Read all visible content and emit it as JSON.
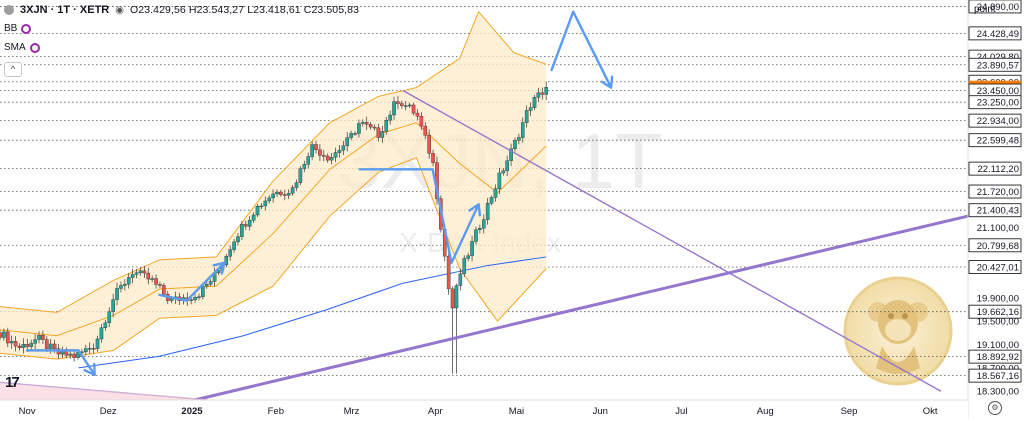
{
  "header": {
    "symbol": "3XJN · 1T · XETR",
    "ohlc": "O23.429,56  H23.543,27  L23.418,61  C23.505,83",
    "indicators": [
      "BB",
      "SMA"
    ],
    "collapse_glyph": "^"
  },
  "watermark": {
    "big": "3XJN, 1T",
    "sub": "X-DAX Index"
  },
  "axis": {
    "unit": "point",
    "price_labels": [
      {
        "v": 24890.0,
        "t": "24.890,00",
        "boxed": true
      },
      {
        "v": 24428.49,
        "t": "24.428,49",
        "boxed": true
      },
      {
        "v": 24029.8,
        "t": "24.029,80",
        "boxed": true
      },
      {
        "v": 23890.57,
        "t": "23.890,57",
        "boxed": true
      },
      {
        "v": 23600.0,
        "t": "23.600,00",
        "boxed": true
      },
      {
        "v": 23505.83,
        "t": "23.505,83",
        "boxed": true,
        "current": true
      },
      {
        "v": 23450.0,
        "t": "23.450,00",
        "boxed": true
      },
      {
        "v": 23250.0,
        "t": "23.250,00",
        "boxed": true
      },
      {
        "v": 22934.0,
        "t": "22.934,00",
        "boxed": true
      },
      {
        "v": 22599.48,
        "t": "22.599,48",
        "boxed": true
      },
      {
        "v": 22112.2,
        "t": "22.112,20",
        "boxed": true
      },
      {
        "v": 21720.0,
        "t": "21.720,00",
        "boxed": true
      },
      {
        "v": 21400.43,
        "t": "21.400,43",
        "boxed": true
      },
      {
        "v": 21100.0,
        "t": "21.100,00",
        "boxed": false
      },
      {
        "v": 20799.68,
        "t": "20.799,68",
        "boxed": true
      },
      {
        "v": 20427.01,
        "t": "20.427,01",
        "boxed": true
      },
      {
        "v": 19900.0,
        "t": "19.900,00",
        "boxed": false
      },
      {
        "v": 19662.16,
        "t": "19.662,16",
        "boxed": true
      },
      {
        "v": 19500.0,
        "t": "19.500,00",
        "boxed": false
      },
      {
        "v": 19100.0,
        "t": "19.100,00",
        "boxed": false
      },
      {
        "v": 18892.92,
        "t": "18.892,92",
        "boxed": true
      },
      {
        "v": 18700.0,
        "t": "18.700,00",
        "boxed": false
      },
      {
        "v": 18567.16,
        "t": "18.567,16",
        "boxed": true
      },
      {
        "v": 18300.0,
        "t": "18.300,00",
        "boxed": false
      }
    ],
    "months": [
      "Nov",
      "Dez",
      "2025",
      "Feb",
      "Mrz",
      "Apr",
      "Mai",
      "Jun",
      "Jul",
      "Aug",
      "Sep",
      "Okt"
    ]
  },
  "chart_data": {
    "type": "candlestick",
    "ylim": [
      18150,
      25000
    ],
    "x_start": "2024-10-22",
    "x_end": "2025-10-15",
    "last_candle": "2025-05-12",
    "horizontal_levels": [
      24890,
      24428.49,
      24029.8,
      23890.57,
      23600,
      23450,
      23250,
      22934,
      22599.48,
      22112.2,
      21720,
      21400.43,
      20799.68,
      20427.01,
      19662.16,
      18892.92,
      18567.16
    ],
    "closes": [
      {
        "d": "2024-10-22",
        "c": 19300
      },
      {
        "d": "2024-10-29",
        "c": 19050
      },
      {
        "d": "2024-11-05",
        "c": 19200
      },
      {
        "d": "2024-11-12",
        "c": 18950
      },
      {
        "d": "2024-11-19",
        "c": 18900
      },
      {
        "d": "2024-11-26",
        "c": 19100
      },
      {
        "d": "2024-12-03",
        "c": 19900
      },
      {
        "d": "2024-12-10",
        "c": 20350
      },
      {
        "d": "2024-12-17",
        "c": 20200
      },
      {
        "d": "2024-12-24",
        "c": 19850
      },
      {
        "d": "2025-01-03",
        "c": 19950
      },
      {
        "d": "2025-01-10",
        "c": 20300
      },
      {
        "d": "2025-01-17",
        "c": 20950
      },
      {
        "d": "2025-01-24",
        "c": 21400
      },
      {
        "d": "2025-01-31",
        "c": 21700
      },
      {
        "d": "2025-02-07",
        "c": 21750
      },
      {
        "d": "2025-02-14",
        "c": 22500
      },
      {
        "d": "2025-02-21",
        "c": 22300
      },
      {
        "d": "2025-02-28",
        "c": 22600
      },
      {
        "d": "2025-03-04",
        "c": 22900
      },
      {
        "d": "2025-03-11",
        "c": 22700
      },
      {
        "d": "2025-03-18",
        "c": 23300
      },
      {
        "d": "2025-03-25",
        "c": 23050
      },
      {
        "d": "2025-03-31",
        "c": 22250
      },
      {
        "d": "2025-04-04",
        "c": 20800
      },
      {
        "d": "2025-04-07",
        "c": 19650
      },
      {
        "d": "2025-04-10",
        "c": 20300
      },
      {
        "d": "2025-04-17",
        "c": 21100
      },
      {
        "d": "2025-04-24",
        "c": 21900
      },
      {
        "d": "2025-04-30",
        "c": 22500
      },
      {
        "d": "2025-05-06",
        "c": 23200
      },
      {
        "d": "2025-05-12",
        "c": 23505.83
      }
    ],
    "bollinger": {
      "upper": [
        {
          "d": "2024-10-22",
          "v": 19750
        },
        {
          "d": "2024-11-12",
          "v": 19650
        },
        {
          "d": "2024-12-03",
          "v": 20200
        },
        {
          "d": "2024-12-20",
          "v": 20550
        },
        {
          "d": "2025-01-10",
          "v": 20600
        },
        {
          "d": "2025-01-31",
          "v": 21900
        },
        {
          "d": "2025-02-21",
          "v": 22900
        },
        {
          "d": "2025-03-11",
          "v": 23350
        },
        {
          "d": "2025-03-25",
          "v": 23500
        },
        {
          "d": "2025-04-10",
          "v": 24000
        },
        {
          "d": "2025-04-17",
          "v": 24800
        },
        {
          "d": "2025-04-30",
          "v": 24100
        },
        {
          "d": "2025-05-12",
          "v": 23900
        }
      ],
      "basis": [
        {
          "d": "2024-10-22",
          "v": 19350
        },
        {
          "d": "2024-11-12",
          "v": 19250
        },
        {
          "d": "2024-12-03",
          "v": 19600
        },
        {
          "d": "2024-12-20",
          "v": 20050
        },
        {
          "d": "2025-01-10",
          "v": 20100
        },
        {
          "d": "2025-01-31",
          "v": 21000
        },
        {
          "d": "2025-02-21",
          "v": 22100
        },
        {
          "d": "2025-03-11",
          "v": 22700
        },
        {
          "d": "2025-03-25",
          "v": 22900
        },
        {
          "d": "2025-04-10",
          "v": 22200
        },
        {
          "d": "2025-04-24",
          "v": 21700
        },
        {
          "d": "2025-05-12",
          "v": 22500
        }
      ],
      "lower": [
        {
          "d": "2024-10-22",
          "v": 18950
        },
        {
          "d": "2024-11-12",
          "v": 18850
        },
        {
          "d": "2024-12-03",
          "v": 19000
        },
        {
          "d": "2024-12-20",
          "v": 19550
        },
        {
          "d": "2025-01-10",
          "v": 19600
        },
        {
          "d": "2025-01-31",
          "v": 20100
        },
        {
          "d": "2025-02-21",
          "v": 21300
        },
        {
          "d": "2025-03-11",
          "v": 22050
        },
        {
          "d": "2025-03-25",
          "v": 22300
        },
        {
          "d": "2025-04-10",
          "v": 20400
        },
        {
          "d": "2025-04-24",
          "v": 19500
        },
        {
          "d": "2025-05-12",
          "v": 20400
        }
      ]
    },
    "sma": [
      {
        "d": "2024-11-20",
        "v": 18700
      },
      {
        "d": "2024-12-20",
        "v": 18900
      },
      {
        "d": "2025-01-20",
        "v": 19250
      },
      {
        "d": "2025-02-20",
        "v": 19700
      },
      {
        "d": "2025-03-20",
        "v": 20150
      },
      {
        "d": "2025-04-20",
        "v": 20450
      },
      {
        "d": "2025-05-12",
        "v": 20600
      }
    ],
    "trendlines": [
      {
        "from": {
          "d": "2025-01-02",
          "v": 18150
        },
        "to": {
          "d": "2025-10-15",
          "v": 21300
        }
      },
      {
        "from": {
          "d": "2025-03-20",
          "v": 23450
        },
        "to": {
          "d": "2025-10-05",
          "v": 18300
        }
      },
      {
        "from": {
          "d": "2024-10-22",
          "v": 18450
        },
        "to": {
          "d": "2025-01-07",
          "v": 18150
        }
      }
    ],
    "arrows": [
      [
        {
          "d": "2024-11-01",
          "v": 19000
        },
        {
          "d": "2024-11-20",
          "v": 19000
        },
        {
          "d": "2024-11-26",
          "v": 18580
        }
      ],
      [
        {
          "d": "2024-12-20",
          "v": 19950
        },
        {
          "d": "2024-12-30",
          "v": 19850
        },
        {
          "d": "2025-01-13",
          "v": 20500
        }
      ],
      [
        {
          "d": "2025-03-04",
          "v": 22100
        },
        {
          "d": "2025-03-31",
          "v": 22100
        },
        {
          "d": "2025-04-07",
          "v": 20500
        },
        {
          "d": "2025-04-17",
          "v": 21500
        }
      ],
      [
        {
          "d": "2025-05-14",
          "v": 23800
        },
        {
          "d": "2025-05-22",
          "v": 24800
        },
        {
          "d": "2025-06-05",
          "v": 23500
        }
      ]
    ]
  },
  "colors": {
    "candle_up": "#26a69a",
    "candle_down": "#ef5350",
    "bb_band": "#f5a623",
    "bb_fill": "#fdebc8",
    "sma": "#2962ff",
    "trendline": "#9575cd",
    "arrow": "#5b9bf0",
    "current_price_bg": "#f57c00",
    "level_line": "#555555"
  }
}
